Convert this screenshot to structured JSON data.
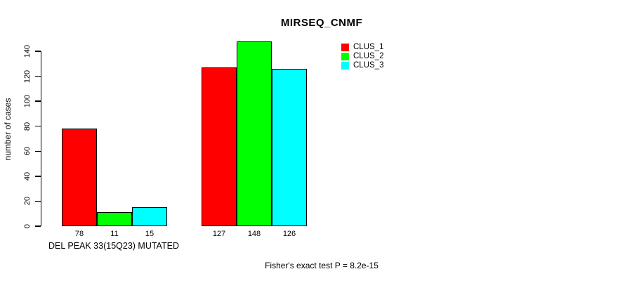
{
  "chart_data": {
    "type": "bar",
    "title": "MIRSEQ_CNMF",
    "ylabel": "number of cases",
    "xlabel": "DEL PEAK 33(15Q23) MUTATED",
    "ylim": [
      0,
      140
    ],
    "yticks": [
      0,
      20,
      40,
      60,
      80,
      100,
      120,
      140
    ],
    "grid": false,
    "legend_position": "top-right",
    "series": [
      {
        "name": "CLUS_1",
        "color": "#FF0000"
      },
      {
        "name": "CLUS_2",
        "color": "#00FF00"
      },
      {
        "name": "CLUS_3",
        "color": "#00FFFF"
      }
    ],
    "groups": [
      {
        "label": "DEL PEAK 33(15Q23) MUTATED",
        "values": [
          78,
          11,
          15
        ],
        "bar_labels": [
          "78",
          "11",
          "15"
        ]
      },
      {
        "label": "",
        "values": [
          127,
          148,
          126
        ],
        "bar_labels": [
          "127",
          "148",
          "126"
        ]
      }
    ],
    "annotation": "Fisher's exact test P = 8.2e-15"
  }
}
